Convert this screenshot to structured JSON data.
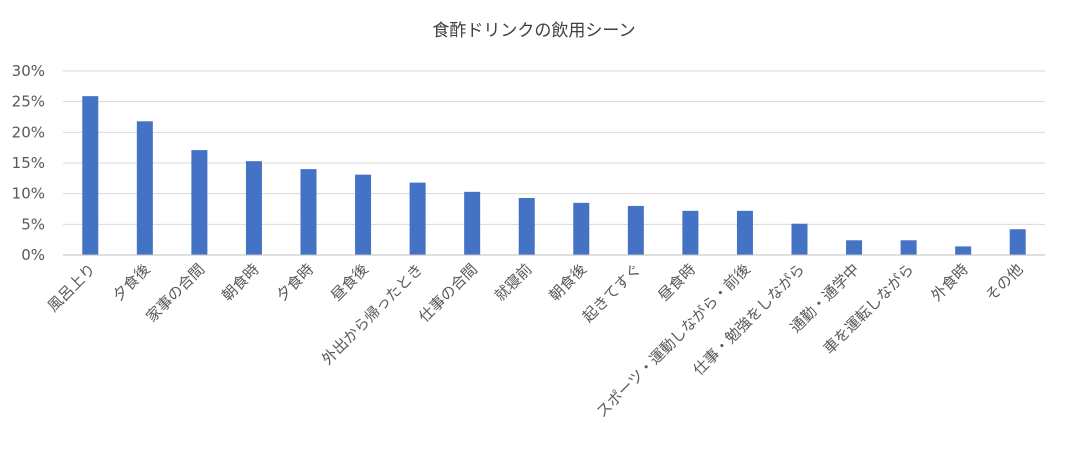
{
  "chart_data": {
    "type": "bar",
    "title": "食酢ドリンクの飲用シーン",
    "xlabel": "",
    "ylabel": "",
    "ylim": [
      0,
      30
    ],
    "yticks": [
      "0%",
      "5%",
      "10%",
      "15%",
      "20%",
      "25%",
      "30%"
    ],
    "grid": true,
    "legend": "none",
    "bar_color": "#4472C4",
    "categories": [
      "風呂上り",
      "夕食後",
      "家事の合間",
      "朝食時",
      "夕食時",
      "昼食後",
      "外出から帰ったとき",
      "仕事の合間",
      "就寝前",
      "朝食後",
      "起きてすぐ",
      "昼食時",
      "スポーツ・運動しながら・前後",
      "仕事・勉強をしながら",
      "通勤・通学中",
      "車を運転しながら",
      "外食時",
      "その他"
    ],
    "values": [
      25.9,
      21.8,
      17.1,
      15.3,
      14.0,
      13.1,
      11.8,
      10.3,
      9.3,
      8.5,
      8.0,
      7.2,
      7.2,
      5.1,
      2.4,
      2.4,
      1.4,
      4.2
    ]
  }
}
